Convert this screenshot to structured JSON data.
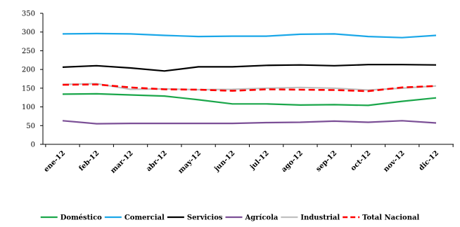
{
  "chart_data": {
    "type": "line",
    "categories": [
      "ene-12",
      "feb-12",
      "mar-12",
      "abr-12",
      "may-12",
      "jun-12",
      "jul-12",
      "ago-12",
      "sep-12",
      "oct-12",
      "nov-12",
      "dic-12"
    ],
    "ylim": [
      0,
      350
    ],
    "yticks": [
      0,
      50,
      100,
      150,
      200,
      250,
      300,
      350
    ],
    "grid": false,
    "legend_position": "bottom",
    "series": [
      {
        "name": "Doméstico",
        "color": "#1aa64a",
        "dash": false,
        "values": [
          134,
          135,
          132,
          129,
          119,
          108,
          108,
          105,
          106,
          104,
          115,
          124
        ]
      },
      {
        "name": "Comercial",
        "color": "#1aa7e8",
        "dash": false,
        "values": [
          295,
          296,
          295,
          291,
          288,
          289,
          289,
          294,
          295,
          288,
          285,
          291
        ]
      },
      {
        "name": "Servicios",
        "color": "#000000",
        "dash": false,
        "values": [
          206,
          210,
          204,
          196,
          207,
          207,
          211,
          212,
          210,
          213,
          213,
          212
        ]
      },
      {
        "name": "Agrícola",
        "color": "#7b4f96",
        "dash": false,
        "values": [
          63,
          55,
          56,
          56,
          56,
          56,
          58,
          59,
          62,
          59,
          63,
          57
        ]
      },
      {
        "name": "Industrial",
        "color": "#c0c0c0",
        "dash": false,
        "values": [
          160,
          162,
          147,
          148,
          146,
          147,
          150,
          152,
          150,
          145,
          150,
          156
        ]
      },
      {
        "name": "Total Nacional",
        "color": "#ff0000",
        "dash": true,
        "values": [
          159,
          160,
          152,
          147,
          146,
          143,
          147,
          146,
          145,
          142,
          152,
          156
        ]
      }
    ]
  }
}
